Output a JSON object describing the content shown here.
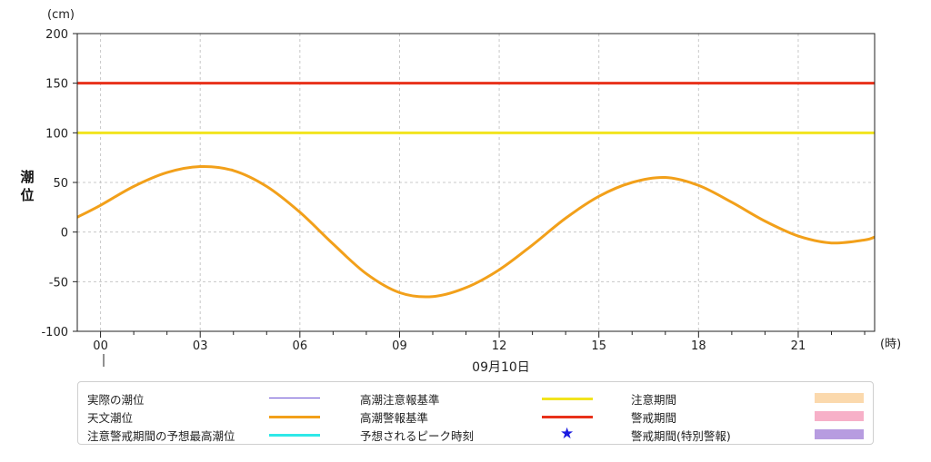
{
  "chart_data": {
    "type": "line",
    "y_unit": "(cm)",
    "ylabel": "潮\n位",
    "x_unit": "(時)",
    "ylim": [
      -100,
      200
    ],
    "yticks": [
      200,
      150,
      100,
      50,
      0,
      -50,
      -100
    ],
    "ytick_labels": [
      "200",
      "150",
      "100",
      "50",
      "0",
      "-50",
      "-100"
    ],
    "xlim": [
      -0.7,
      23.3
    ],
    "xticks": [
      0,
      3,
      6,
      9,
      12,
      15,
      18,
      21
    ],
    "xtick_labels": [
      "00",
      "03",
      "06",
      "09",
      "12",
      "15",
      "18",
      "21"
    ],
    "date_label": "09月10日",
    "grid": true,
    "thresholds": [
      {
        "name": "高潮警報基準",
        "value": 150,
        "color": "#e8311a"
      },
      {
        "name": "高潮注意報基準",
        "value": 100,
        "color": "#f2e41e"
      }
    ],
    "series": [
      {
        "name": "天文潮位",
        "color": "#f2a01a",
        "x": [
          -0.7,
          0,
          1,
          2,
          3,
          4,
          5,
          6,
          7,
          8,
          9,
          10,
          11,
          12,
          13,
          14,
          15,
          16,
          17,
          18,
          19,
          20,
          21,
          22,
          23,
          23.3
        ],
        "y": [
          15,
          27,
          46,
          60,
          66,
          62,
          46,
          20,
          -12,
          -42,
          -61,
          -65,
          -56,
          -38,
          -13,
          14,
          36,
          50,
          55,
          47,
          30,
          11,
          -4,
          -11,
          -8,
          -5
        ]
      }
    ]
  },
  "legend": {
    "items": [
      {
        "label": "実際の潮位",
        "kind": "line",
        "color": "#6a4fd4"
      },
      {
        "label": "天文潮位",
        "kind": "line",
        "color": "#f2a01a"
      },
      {
        "label": "注意警戒期間の予想最高潮位",
        "kind": "line",
        "color": "#2fe8e8"
      },
      {
        "label": "高潮注意報基準",
        "kind": "line",
        "color": "#f2e41e"
      },
      {
        "label": "高潮警報基準",
        "kind": "line",
        "color": "#e8311a"
      },
      {
        "label": "予想されるピーク時刻",
        "kind": "star",
        "color": "#1a1ae0",
        "symbol": "★"
      },
      {
        "label": "注意期間",
        "kind": "rect",
        "color": "#fbd9ad"
      },
      {
        "label": "警戒期間",
        "kind": "rect",
        "color": "#f7b0c8"
      },
      {
        "label": "警戒期間(特別警報)",
        "kind": "rect",
        "color": "#b79ce0"
      }
    ]
  }
}
